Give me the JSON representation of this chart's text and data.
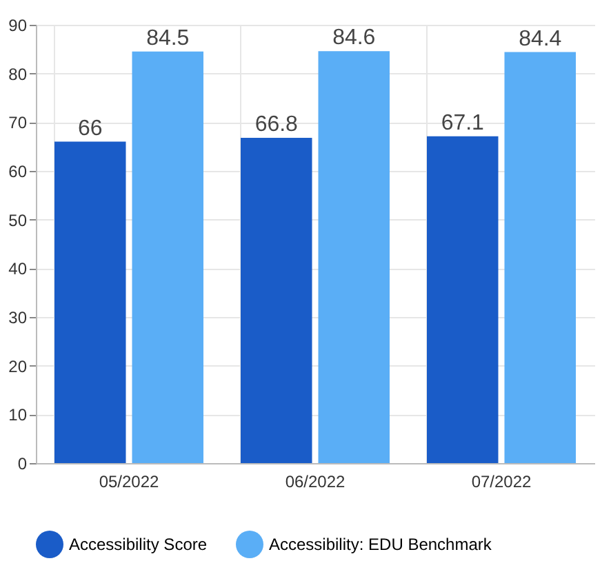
{
  "chart_data": {
    "type": "bar",
    "categories": [
      "05/2022",
      "06/2022",
      "07/2022"
    ],
    "series": [
      {
        "name": "Accessibility Score",
        "color": "#1a5cc8",
        "values": [
          66,
          66.8,
          67.1
        ]
      },
      {
        "name": "Accessibility: EDU Benchmark",
        "color": "#5aaef6",
        "values": [
          84.5,
          84.6,
          84.4
        ]
      }
    ],
    "ylim": [
      0,
      90
    ],
    "yticks": [
      0,
      10,
      20,
      30,
      40,
      50,
      60,
      70,
      80,
      90
    ],
    "grid": true,
    "data_labels": true,
    "legend": "bottom"
  }
}
